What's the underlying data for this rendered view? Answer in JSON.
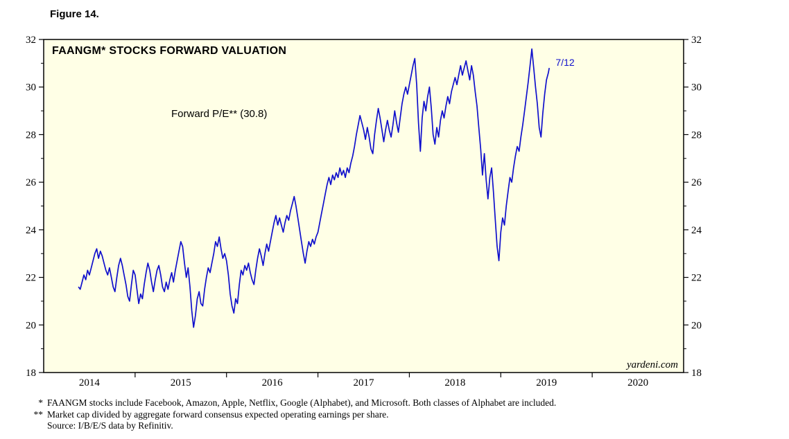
{
  "figure": {
    "label": "Figure 14."
  },
  "chart_data": {
    "type": "line",
    "title": "FAANGM* STOCKS FORWARD VALUATION",
    "annotation": "Forward P/E** (30.8)",
    "end_label": {
      "text": "7/12",
      "x": 2019.6,
      "y": 30.9
    },
    "watermark": "yardeni.com",
    "series_name": "Forward P/E",
    "x_range": [
      2014,
      2021
    ],
    "y_range": [
      18,
      32
    ],
    "x_tick_years": [
      "2014",
      "2015",
      "2016",
      "2017",
      "2018",
      "2019",
      "2020"
    ],
    "y_ticks": [
      "18",
      "20",
      "22",
      "24",
      "26",
      "28",
      "30",
      "32"
    ],
    "y_minor_ticks": [
      19,
      21,
      23,
      25,
      27,
      29,
      31
    ],
    "line_color": "#0f0fcc",
    "plot_bg": "#ffffe6",
    "series": [
      [
        2014.38,
        21.6
      ],
      [
        2014.4,
        21.5
      ],
      [
        2014.42,
        21.8
      ],
      [
        2014.44,
        22.1
      ],
      [
        2014.46,
        21.9
      ],
      [
        2014.48,
        22.3
      ],
      [
        2014.5,
        22.1
      ],
      [
        2014.52,
        22.4
      ],
      [
        2014.54,
        22.7
      ],
      [
        2014.56,
        23.0
      ],
      [
        2014.58,
        23.2
      ],
      [
        2014.6,
        22.8
      ],
      [
        2014.62,
        23.1
      ],
      [
        2014.64,
        22.9
      ],
      [
        2014.66,
        22.6
      ],
      [
        2014.68,
        22.3
      ],
      [
        2014.7,
        22.1
      ],
      [
        2014.72,
        22.4
      ],
      [
        2014.74,
        22.0
      ],
      [
        2014.76,
        21.6
      ],
      [
        2014.78,
        21.4
      ],
      [
        2014.8,
        22.0
      ],
      [
        2014.82,
        22.5
      ],
      [
        2014.84,
        22.8
      ],
      [
        2014.86,
        22.5
      ],
      [
        2014.88,
        22.1
      ],
      [
        2014.9,
        21.7
      ],
      [
        2014.92,
        21.2
      ],
      [
        2014.94,
        21.0
      ],
      [
        2014.96,
        21.7
      ],
      [
        2014.98,
        22.3
      ],
      [
        2015.0,
        22.1
      ],
      [
        2015.02,
        21.5
      ],
      [
        2015.04,
        20.9
      ],
      [
        2015.06,
        21.3
      ],
      [
        2015.08,
        21.1
      ],
      [
        2015.1,
        21.7
      ],
      [
        2015.12,
        22.2
      ],
      [
        2015.14,
        22.6
      ],
      [
        2015.16,
        22.3
      ],
      [
        2015.18,
        21.8
      ],
      [
        2015.2,
        21.4
      ],
      [
        2015.22,
        21.9
      ],
      [
        2015.24,
        22.3
      ],
      [
        2015.26,
        22.5
      ],
      [
        2015.28,
        22.1
      ],
      [
        2015.3,
        21.6
      ],
      [
        2015.32,
        21.4
      ],
      [
        2015.34,
        21.8
      ],
      [
        2015.36,
        21.5
      ],
      [
        2015.38,
        21.9
      ],
      [
        2015.4,
        22.2
      ],
      [
        2015.42,
        21.8
      ],
      [
        2015.44,
        22.3
      ],
      [
        2015.46,
        22.7
      ],
      [
        2015.48,
        23.1
      ],
      [
        2015.5,
        23.5
      ],
      [
        2015.52,
        23.3
      ],
      [
        2015.54,
        22.6
      ],
      [
        2015.56,
        22.0
      ],
      [
        2015.58,
        22.4
      ],
      [
        2015.6,
        21.6
      ],
      [
        2015.62,
        20.6
      ],
      [
        2015.64,
        19.9
      ],
      [
        2015.66,
        20.4
      ],
      [
        2015.68,
        21.1
      ],
      [
        2015.7,
        21.4
      ],
      [
        2015.72,
        20.9
      ],
      [
        2015.74,
        20.8
      ],
      [
        2015.76,
        21.5
      ],
      [
        2015.78,
        22.0
      ],
      [
        2015.8,
        22.4
      ],
      [
        2015.82,
        22.2
      ],
      [
        2015.84,
        22.6
      ],
      [
        2015.86,
        23.0
      ],
      [
        2015.88,
        23.5
      ],
      [
        2015.9,
        23.3
      ],
      [
        2015.92,
        23.7
      ],
      [
        2015.94,
        23.2
      ],
      [
        2015.96,
        22.8
      ],
      [
        2015.98,
        23.0
      ],
      [
        2016.0,
        22.7
      ],
      [
        2016.02,
        22.1
      ],
      [
        2016.04,
        21.3
      ],
      [
        2016.06,
        20.8
      ],
      [
        2016.08,
        20.5
      ],
      [
        2016.1,
        21.1
      ],
      [
        2016.12,
        20.9
      ],
      [
        2016.14,
        21.7
      ],
      [
        2016.16,
        22.3
      ],
      [
        2016.18,
        22.1
      ],
      [
        2016.2,
        22.5
      ],
      [
        2016.22,
        22.3
      ],
      [
        2016.24,
        22.6
      ],
      [
        2016.26,
        22.2
      ],
      [
        2016.28,
        21.9
      ],
      [
        2016.3,
        21.7
      ],
      [
        2016.32,
        22.3
      ],
      [
        2016.34,
        22.8
      ],
      [
        2016.36,
        23.2
      ],
      [
        2016.38,
        22.9
      ],
      [
        2016.4,
        22.5
      ],
      [
        2016.42,
        23.0
      ],
      [
        2016.44,
        23.4
      ],
      [
        2016.46,
        23.1
      ],
      [
        2016.48,
        23.5
      ],
      [
        2016.5,
        23.9
      ],
      [
        2016.52,
        24.3
      ],
      [
        2016.54,
        24.6
      ],
      [
        2016.56,
        24.2
      ],
      [
        2016.58,
        24.5
      ],
      [
        2016.6,
        24.2
      ],
      [
        2016.62,
        23.9
      ],
      [
        2016.64,
        24.3
      ],
      [
        2016.66,
        24.6
      ],
      [
        2016.68,
        24.4
      ],
      [
        2016.7,
        24.8
      ],
      [
        2016.72,
        25.1
      ],
      [
        2016.74,
        25.4
      ],
      [
        2016.76,
        25.0
      ],
      [
        2016.78,
        24.5
      ],
      [
        2016.8,
        24.0
      ],
      [
        2016.82,
        23.5
      ],
      [
        2016.84,
        23.0
      ],
      [
        2016.86,
        22.6
      ],
      [
        2016.88,
        23.1
      ],
      [
        2016.9,
        23.5
      ],
      [
        2016.92,
        23.3
      ],
      [
        2016.94,
        23.6
      ],
      [
        2016.96,
        23.4
      ],
      [
        2016.98,
        23.7
      ],
      [
        2017.0,
        23.9
      ],
      [
        2017.02,
        24.3
      ],
      [
        2017.04,
        24.7
      ],
      [
        2017.06,
        25.1
      ],
      [
        2017.08,
        25.5
      ],
      [
        2017.1,
        25.9
      ],
      [
        2017.12,
        26.2
      ],
      [
        2017.14,
        25.9
      ],
      [
        2017.16,
        26.3
      ],
      [
        2017.18,
        26.1
      ],
      [
        2017.2,
        26.4
      ],
      [
        2017.22,
        26.2
      ],
      [
        2017.24,
        26.6
      ],
      [
        2017.26,
        26.3
      ],
      [
        2017.28,
        26.5
      ],
      [
        2017.3,
        26.2
      ],
      [
        2017.32,
        26.6
      ],
      [
        2017.34,
        26.4
      ],
      [
        2017.36,
        26.8
      ],
      [
        2017.38,
        27.1
      ],
      [
        2017.4,
        27.5
      ],
      [
        2017.42,
        28.0
      ],
      [
        2017.44,
        28.4
      ],
      [
        2017.46,
        28.8
      ],
      [
        2017.48,
        28.5
      ],
      [
        2017.5,
        28.2
      ],
      [
        2017.52,
        27.8
      ],
      [
        2017.54,
        28.3
      ],
      [
        2017.56,
        27.9
      ],
      [
        2017.58,
        27.4
      ],
      [
        2017.6,
        27.2
      ],
      [
        2017.62,
        28.0
      ],
      [
        2017.64,
        28.6
      ],
      [
        2017.66,
        29.1
      ],
      [
        2017.68,
        28.7
      ],
      [
        2017.7,
        28.2
      ],
      [
        2017.72,
        27.7
      ],
      [
        2017.74,
        28.2
      ],
      [
        2017.76,
        28.6
      ],
      [
        2017.78,
        28.2
      ],
      [
        2017.8,
        27.9
      ],
      [
        2017.82,
        28.4
      ],
      [
        2017.84,
        29.0
      ],
      [
        2017.86,
        28.5
      ],
      [
        2017.88,
        28.1
      ],
      [
        2017.9,
        28.7
      ],
      [
        2017.92,
        29.3
      ],
      [
        2017.94,
        29.7
      ],
      [
        2017.96,
        30.0
      ],
      [
        2017.98,
        29.7
      ],
      [
        2018.0,
        30.1
      ],
      [
        2018.02,
        30.5
      ],
      [
        2018.04,
        30.9
      ],
      [
        2018.06,
        31.2
      ],
      [
        2018.08,
        30.1
      ],
      [
        2018.1,
        28.5
      ],
      [
        2018.12,
        27.3
      ],
      [
        2018.14,
        28.7
      ],
      [
        2018.16,
        29.4
      ],
      [
        2018.18,
        29.0
      ],
      [
        2018.2,
        29.6
      ],
      [
        2018.22,
        30.0
      ],
      [
        2018.24,
        29.1
      ],
      [
        2018.26,
        28.0
      ],
      [
        2018.28,
        27.6
      ],
      [
        2018.3,
        28.3
      ],
      [
        2018.32,
        27.9
      ],
      [
        2018.34,
        28.6
      ],
      [
        2018.36,
        29.0
      ],
      [
        2018.38,
        28.7
      ],
      [
        2018.4,
        29.2
      ],
      [
        2018.42,
        29.6
      ],
      [
        2018.44,
        29.3
      ],
      [
        2018.46,
        29.8
      ],
      [
        2018.48,
        30.1
      ],
      [
        2018.5,
        30.4
      ],
      [
        2018.52,
        30.1
      ],
      [
        2018.54,
        30.5
      ],
      [
        2018.56,
        30.9
      ],
      [
        2018.58,
        30.5
      ],
      [
        2018.6,
        30.8
      ],
      [
        2018.62,
        31.1
      ],
      [
        2018.64,
        30.7
      ],
      [
        2018.66,
        30.3
      ],
      [
        2018.68,
        30.9
      ],
      [
        2018.7,
        30.5
      ],
      [
        2018.72,
        29.8
      ],
      [
        2018.74,
        29.2
      ],
      [
        2018.76,
        28.3
      ],
      [
        2018.78,
        27.4
      ],
      [
        2018.8,
        26.3
      ],
      [
        2018.82,
        27.2
      ],
      [
        2018.84,
        26.1
      ],
      [
        2018.86,
        25.3
      ],
      [
        2018.88,
        26.2
      ],
      [
        2018.9,
        26.6
      ],
      [
        2018.92,
        25.6
      ],
      [
        2018.94,
        24.4
      ],
      [
        2018.96,
        23.3
      ],
      [
        2018.98,
        22.7
      ],
      [
        2019.0,
        23.9
      ],
      [
        2019.02,
        24.5
      ],
      [
        2019.04,
        24.2
      ],
      [
        2019.06,
        25.0
      ],
      [
        2019.08,
        25.6
      ],
      [
        2019.1,
        26.2
      ],
      [
        2019.12,
        26.0
      ],
      [
        2019.14,
        26.6
      ],
      [
        2019.16,
        27.1
      ],
      [
        2019.18,
        27.5
      ],
      [
        2019.2,
        27.3
      ],
      [
        2019.22,
        27.9
      ],
      [
        2019.24,
        28.4
      ],
      [
        2019.26,
        29.0
      ],
      [
        2019.28,
        29.6
      ],
      [
        2019.3,
        30.2
      ],
      [
        2019.32,
        30.9
      ],
      [
        2019.34,
        31.6
      ],
      [
        2019.36,
        30.8
      ],
      [
        2019.38,
        30.0
      ],
      [
        2019.4,
        29.3
      ],
      [
        2019.42,
        28.3
      ],
      [
        2019.44,
        27.9
      ],
      [
        2019.46,
        28.9
      ],
      [
        2019.48,
        29.7
      ],
      [
        2019.5,
        30.3
      ],
      [
        2019.52,
        30.6
      ],
      [
        2019.53,
        30.8
      ]
    ]
  },
  "footnotes": [
    {
      "marker": "*",
      "text": "FAANGM stocks include Facebook, Amazon, Apple, Netflix, Google (Alphabet), and Microsoft. Both classes of Alphabet are included."
    },
    {
      "marker": "**",
      "text": "Market cap divided by aggregate forward consensus expected operating earnings per share."
    },
    {
      "marker": "",
      "text": "Source: I/B/E/S data by Refinitiv."
    }
  ]
}
